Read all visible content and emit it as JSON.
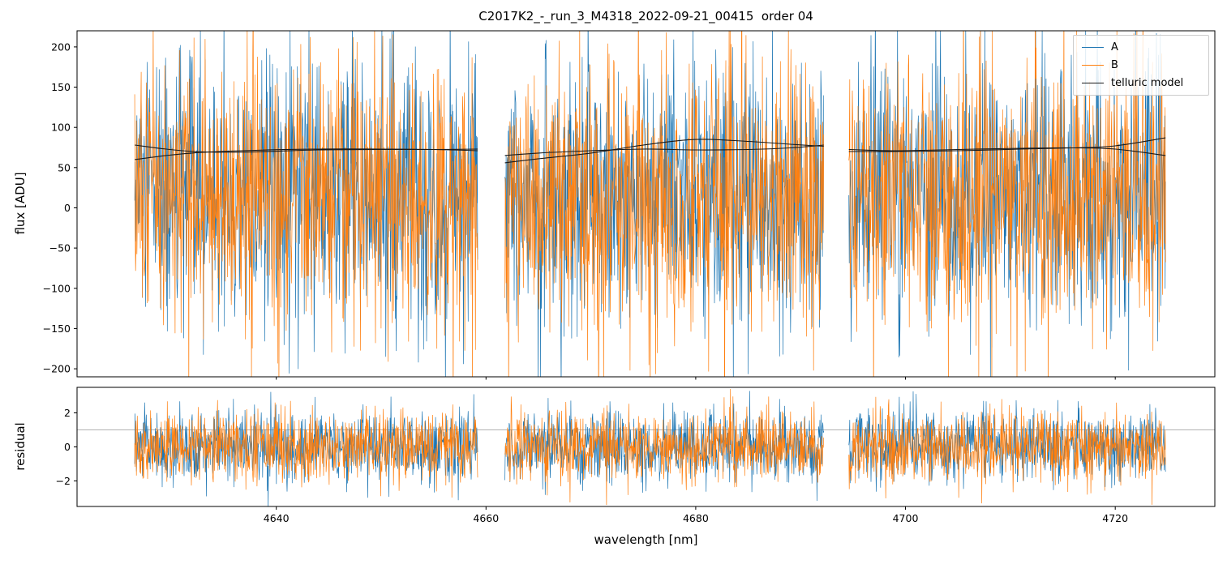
{
  "chart_data": {
    "type": "line",
    "title": "C2017K2_-_run_3_M4318_2022-09-21_00415  order 04",
    "xlabel": "wavelength [nm]",
    "xlim": [
      4621.0,
      4729.5
    ],
    "xticks": [
      4640,
      4660,
      4680,
      4700,
      4720
    ],
    "seed": 12345,
    "grid": false,
    "legend_position": "upper right",
    "series": [
      {
        "name": "A",
        "color": "#1f77b4"
      },
      {
        "name": "B",
        "color": "#ff7f0e"
      },
      {
        "name": "telluric model",
        "color": "#1a1a1a"
      }
    ],
    "segments": [
      {
        "x_start": 4626.5,
        "x_end": 4659.2,
        "n_points": 800
      },
      {
        "x_start": 4661.8,
        "x_end": 4692.2,
        "n_points": 760
      },
      {
        "x_start": 4694.6,
        "x_end": 4724.8,
        "n_points": 730
      }
    ],
    "top_panel": {
      "ylabel": "flux [ADU]",
      "ylim": [
        -210,
        220
      ],
      "yticks": [
        200,
        150,
        100,
        50,
        0,
        -50,
        -100,
        -150,
        -200
      ],
      "noise_mean": 15,
      "noise_std": 85
    },
    "bottom_panel": {
      "ylabel": "residual",
      "ylim": [
        -3.5,
        3.5
      ],
      "yticks": [
        2,
        0,
        -2
      ],
      "hline": 1,
      "hline_color": "#999999",
      "noise_mean": 0,
      "noise_std": 1.05
    },
    "telluric_model": {
      "segments": [
        {
          "curve_a": [
            [
              4626.5,
              60
            ],
            [
              4629.5,
              65
            ],
            [
              4633,
              69
            ],
            [
              4638,
              71.5
            ],
            [
              4644,
              73
            ],
            [
              4650,
              73
            ],
            [
              4655,
              72.5
            ],
            [
              4659.2,
              71
            ]
          ],
          "curve_b": [
            [
              4626.5,
              78
            ],
            [
              4629.5,
              73
            ],
            [
              4633,
              69.5
            ],
            [
              4638,
              69.5
            ],
            [
              4644,
              72
            ],
            [
              4650,
              72.5
            ],
            [
              4655,
              72.5
            ],
            [
              4659.2,
              73
            ]
          ]
        },
        {
          "curve_a": [
            [
              4661.8,
              56
            ],
            [
              4665,
              61
            ],
            [
              4670,
              68
            ],
            [
              4675,
              78
            ],
            [
              4680,
              85
            ],
            [
              4685,
              82.5
            ],
            [
              4689,
              79
            ],
            [
              4692.2,
              76.5
            ]
          ],
          "curve_b": [
            [
              4661.8,
              65
            ],
            [
              4665,
              68
            ],
            [
              4670,
              71
            ],
            [
              4675,
              73
            ],
            [
              4680,
              72
            ],
            [
              4685,
              72.5
            ],
            [
              4689,
              74.5
            ],
            [
              4692.2,
              78
            ]
          ]
        },
        {
          "curve_a": [
            [
              4694.6,
              70
            ],
            [
              4699,
              70
            ],
            [
              4705,
              71
            ],
            [
              4711,
              73
            ],
            [
              4716,
              74.5
            ],
            [
              4720,
              77
            ],
            [
              4724.8,
              87
            ]
          ],
          "curve_b": [
            [
              4694.6,
              72.5
            ],
            [
              4699,
              71
            ],
            [
              4705,
              72.5
            ],
            [
              4711,
              74
            ],
            [
              4716,
              74.5
            ],
            [
              4720,
              73
            ],
            [
              4724.8,
              65
            ]
          ]
        }
      ]
    }
  }
}
